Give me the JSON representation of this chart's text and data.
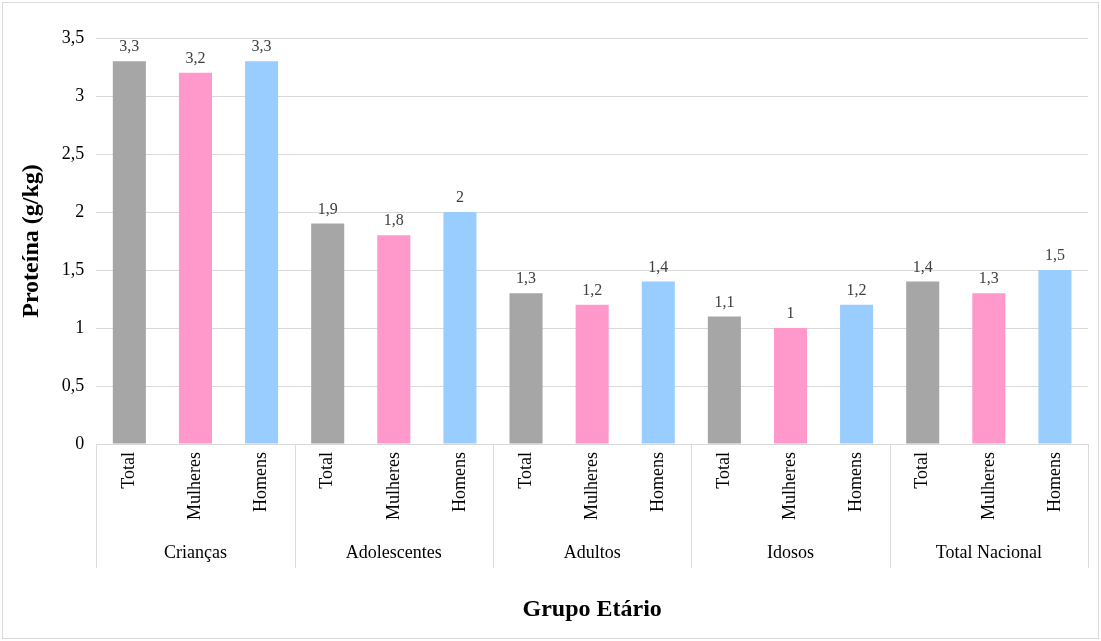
{
  "chart_data": {
    "type": "bar",
    "xlabel": "Grupo Etário",
    "ylabel": "Proteína (g/kg)",
    "categories": [
      "Total",
      "Mulheres",
      "Homens",
      "Total",
      "Mulheres",
      "Homens",
      "Total",
      "Mulheres",
      "Homens",
      "Total",
      "Mulheres",
      "Homens",
      "Total",
      "Mulheres",
      "Homens"
    ],
    "values": [
      3.3,
      3.2,
      3.3,
      1.9,
      1.8,
      2,
      1.3,
      1.2,
      1.4,
      1.1,
      1,
      1.2,
      1.4,
      1.3,
      1.5
    ],
    "colors": [
      "#a6a6a6",
      "#ff99cc",
      "#99ccff",
      "#a6a6a6",
      "#ff99cc",
      "#99ccff",
      "#a6a6a6",
      "#ff99cc",
      "#99ccff",
      "#a6a6a6",
      "#ff99cc",
      "#99ccff",
      "#a6a6a6",
      "#ff99cc",
      "#99ccff"
    ],
    "value_labels": [
      "3,3",
      "3,2",
      "3,3",
      "1,9",
      "1,8",
      "2",
      "1,3",
      "1,2",
      "1,4",
      "1,1",
      "1",
      "1,2",
      "1,4",
      "1,3",
      "1,5"
    ],
    "annotations": [
      "Crianças",
      "Adolescentes",
      "Adultos",
      "Idosos",
      "Total Nacional"
    ],
    "ylim": [
      0,
      3.5
    ],
    "yticks": [
      0,
      {
        "value": 0.5,
        "label": "0,5"
      },
      1,
      {
        "value": 1.5,
        "label": "1,5"
      },
      2,
      {
        "value": 2.5,
        "label": "2,5"
      },
      3,
      {
        "value": 3.5,
        "label": "3,5"
      }
    ],
    "grid": "y",
    "legend": false
  }
}
